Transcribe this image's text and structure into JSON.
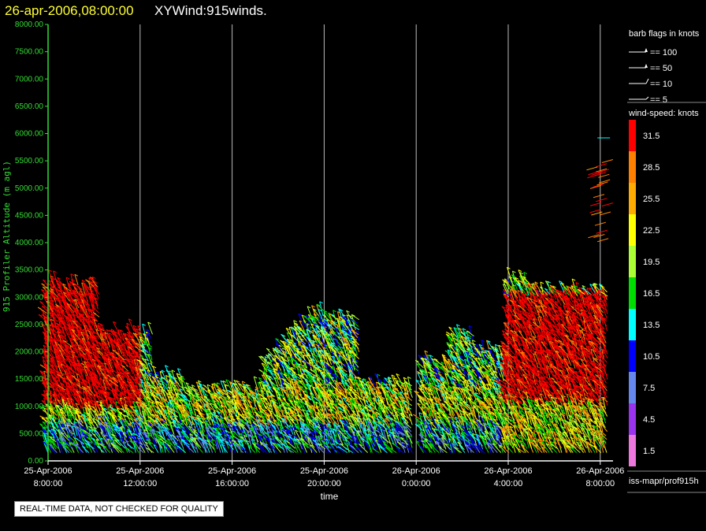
{
  "header": {
    "datetime": "26-apr-2006,08:00:00",
    "product": "XYWind:915winds."
  },
  "footer": {
    "disclaimer": "REAL-TIME DATA, NOT CHECKED FOR QUALITY",
    "source": "iss-mapr/prof915h"
  },
  "colors": {
    "header_datetime": "#ffff33",
    "header_product": "#ffffff",
    "axis": "#33dd33",
    "gridline": "#bbbbbb"
  },
  "chart_data": {
    "type": "scatter",
    "xlabel": "time",
    "ylabel": "915 Profiler Altitude (m agl)",
    "ylim": [
      0,
      8000
    ],
    "yticks": [
      "0.00",
      "500.00",
      "1000.00",
      "1500.00",
      "2000.00",
      "2500.00",
      "3000.00",
      "3500.00",
      "4000.00",
      "4500.00",
      "5000.00",
      "5500.00",
      "6000.00",
      "6500.00",
      "7000.00",
      "7500.00",
      "8000.00"
    ],
    "xlim_hours": [
      0,
      24.6
    ],
    "xticks": [
      {
        "hour": 0,
        "date": "25-Apr-2006",
        "time": "8:00:00"
      },
      {
        "hour": 4,
        "date": "25-Apr-2006",
        "time": "12:00:00"
      },
      {
        "hour": 8,
        "date": "25-Apr-2006",
        "time": "16:00:00"
      },
      {
        "hour": 12,
        "date": "25-Apr-2006",
        "time": "20:00:00"
      },
      {
        "hour": 16,
        "date": "26-Apr-2006",
        "time": "0:00:00"
      },
      {
        "hour": 20,
        "date": "26-Apr-2006",
        "time": "4:00:00"
      },
      {
        "hour": 24,
        "date": "26-Apr-2006",
        "time": "8:00:00"
      }
    ],
    "grid": "vertical",
    "barb_legend": {
      "title": "barb flags in knots",
      "items": [
        {
          "value": 100,
          "label": "== 100"
        },
        {
          "value": 50,
          "label": "== 50"
        },
        {
          "value": 10,
          "label": "== 10"
        },
        {
          "value": 5,
          "label": "== 5"
        }
      ]
    },
    "colorbar": {
      "title": "wind-speed: knots",
      "bins": [
        {
          "label": "31.5",
          "color": "#ff0000"
        },
        {
          "label": "28.5",
          "color": "#ff7f00"
        },
        {
          "label": "25.5",
          "color": "#ffaa00"
        },
        {
          "label": "22.5",
          "color": "#ffff00"
        },
        {
          "label": "19.5",
          "color": "#aaff33"
        },
        {
          "label": "16.5",
          "color": "#00dd00"
        },
        {
          "label": "13.5",
          "color": "#00ffff"
        },
        {
          "label": "10.5",
          "color": "#0000ff"
        },
        {
          "label": "7.5",
          "color": "#6688ee"
        },
        {
          "label": "4.5",
          "color": "#9933ee"
        },
        {
          "label": "1.5",
          "color": "#ee77dd"
        }
      ]
    }
  }
}
